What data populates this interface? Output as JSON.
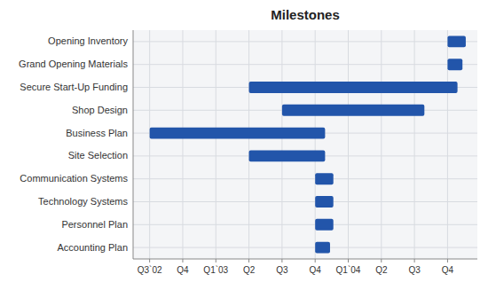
{
  "chart_data": {
    "type": "gantt",
    "title": "Milestones",
    "orientation": "horizontal",
    "categories": [
      "Opening Inventory",
      "Grand Opening Materials",
      "Secure Start-Up Funding",
      "Shop Design",
      "Business Plan",
      "Site Selection",
      "Communication Systems",
      "Technology Systems",
      "Personnel Plan",
      "Accounting Plan"
    ],
    "start": [
      9.0,
      9.0,
      3.0,
      4.0,
      0.0,
      3.0,
      5.0,
      5.0,
      5.0,
      5.0
    ],
    "values": [
      0.55,
      0.45,
      6.3,
      4.3,
      5.3,
      2.3,
      0.55,
      0.55,
      0.55,
      0.45
    ],
    "color": "#2255AA",
    "xlim": [
      -0.5,
      9.9
    ],
    "xticks": [
      {
        "value": 0,
        "label": "Q3`02"
      },
      {
        "value": 1,
        "label": "Q4"
      },
      {
        "value": 2,
        "label": "Q1`03"
      },
      {
        "value": 3,
        "label": "Q2"
      },
      {
        "value": 4,
        "label": "Q3"
      },
      {
        "value": 5,
        "label": "Q4"
      },
      {
        "value": 6,
        "label": "Q1`04"
      },
      {
        "value": 7,
        "label": "Q2"
      },
      {
        "value": 8,
        "label": "Q3"
      },
      {
        "value": 9,
        "label": "Q4"
      }
    ],
    "grid": true
  }
}
